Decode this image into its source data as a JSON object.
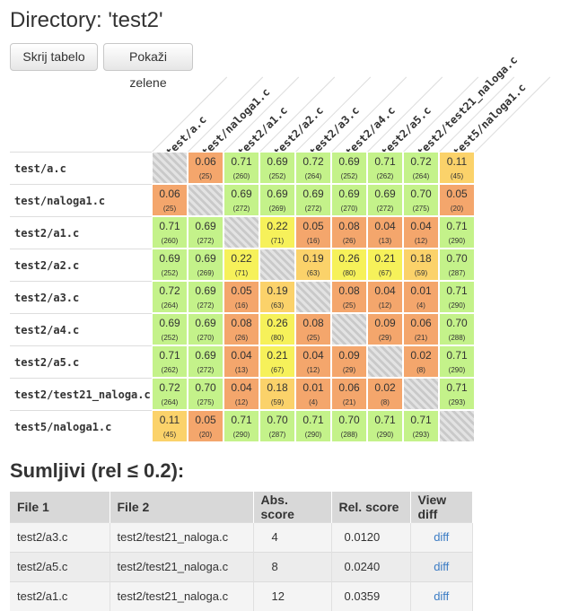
{
  "page": {
    "title": "Directory: 'test2'",
    "buttons": {
      "hide_table": "Skrij tabelo",
      "show_green": "Pokaži zelene"
    },
    "suspicious_heading": "Sumljivi (rel ≤ 0.2):"
  },
  "matrix": {
    "files": [
      "test/a.c",
      "test/naloga1.c",
      "test2/a1.c",
      "test2/a2.c",
      "test2/a3.c",
      "test2/a4.c",
      "test2/a5.c",
      "test2/test21_naloga.c",
      "test5/naloga1.c"
    ],
    "values": [
      [
        null,
        "0.06",
        "0.71",
        "0.69",
        "0.72",
        "0.69",
        "0.71",
        "0.72",
        "0.11"
      ],
      [
        "0.06",
        null,
        "0.69",
        "0.69",
        "0.69",
        "0.69",
        "0.69",
        "0.70",
        "0.05"
      ],
      [
        "0.71",
        "0.69",
        null,
        "0.22",
        "0.05",
        "0.08",
        "0.04",
        "0.04",
        "0.71"
      ],
      [
        "0.69",
        "0.69",
        "0.22",
        null,
        "0.19",
        "0.26",
        "0.21",
        "0.18",
        "0.70"
      ],
      [
        "0.72",
        "0.69",
        "0.05",
        "0.19",
        null,
        "0.08",
        "0.04",
        "0.01",
        "0.71"
      ],
      [
        "0.69",
        "0.69",
        "0.08",
        "0.26",
        "0.08",
        null,
        "0.09",
        "0.06",
        "0.70"
      ],
      [
        "0.71",
        "0.69",
        "0.04",
        "0.21",
        "0.04",
        "0.09",
        null,
        "0.02",
        "0.71"
      ],
      [
        "0.72",
        "0.70",
        "0.04",
        "0.18",
        "0.01",
        "0.06",
        "0.02",
        null,
        "0.71"
      ],
      [
        "0.11",
        "0.05",
        "0.71",
        "0.70",
        "0.71",
        "0.70",
        "0.71",
        "0.71",
        null
      ]
    ],
    "counts": [
      [
        null,
        "(25)",
        "(260)",
        "(252)",
        "(264)",
        "(252)",
        "(262)",
        "(264)",
        "(45)"
      ],
      [
        "(25)",
        null,
        "(272)",
        "(269)",
        "(272)",
        "(270)",
        "(272)",
        "(275)",
        "(20)"
      ],
      [
        "(260)",
        "(272)",
        null,
        "(71)",
        "(16)",
        "(26)",
        "(13)",
        "(12)",
        "(290)"
      ],
      [
        "(252)",
        "(269)",
        "(71)",
        null,
        "(63)",
        "(80)",
        "(67)",
        "(59)",
        "(287)"
      ],
      [
        "(264)",
        "(272)",
        "(16)",
        "(63)",
        null,
        "(25)",
        "(12)",
        "(4)",
        "(290)"
      ],
      [
        "(252)",
        "(270)",
        "(26)",
        "(80)",
        "(25)",
        null,
        "(29)",
        "(21)",
        "(288)"
      ],
      [
        "(262)",
        "(272)",
        "(13)",
        "(67)",
        "(12)",
        "(29)",
        null,
        "(8)",
        "(290)"
      ],
      [
        "(264)",
        "(275)",
        "(12)",
        "(59)",
        "(4)",
        "(21)",
        "(8)",
        null,
        "(293)"
      ],
      [
        "(45)",
        "(20)",
        "(290)",
        "(287)",
        "(290)",
        "(288)",
        "(290)",
        "(293)",
        null
      ]
    ],
    "colors": {
      "green": "#c4f28a",
      "yellow": "#f6f15a",
      "orange": "#f4a66c",
      "light_orange": "#fbd26a"
    }
  },
  "suspicious": {
    "headers": [
      "File 1",
      "File 2",
      "Abs. score",
      "Rel. score",
      "View diff"
    ],
    "rows": [
      {
        "file1": "test2/a3.c",
        "file2": "test2/test21_naloga.c",
        "abs": "4",
        "rel": "0.0120",
        "diff": "diff"
      },
      {
        "file1": "test2/a5.c",
        "file2": "test2/test21_naloga.c",
        "abs": "8",
        "rel": "0.0240",
        "diff": "diff"
      },
      {
        "file1": "test2/a1.c",
        "file2": "test2/test21_naloga.c",
        "abs": "12",
        "rel": "0.0359",
        "diff": "diff"
      }
    ]
  }
}
